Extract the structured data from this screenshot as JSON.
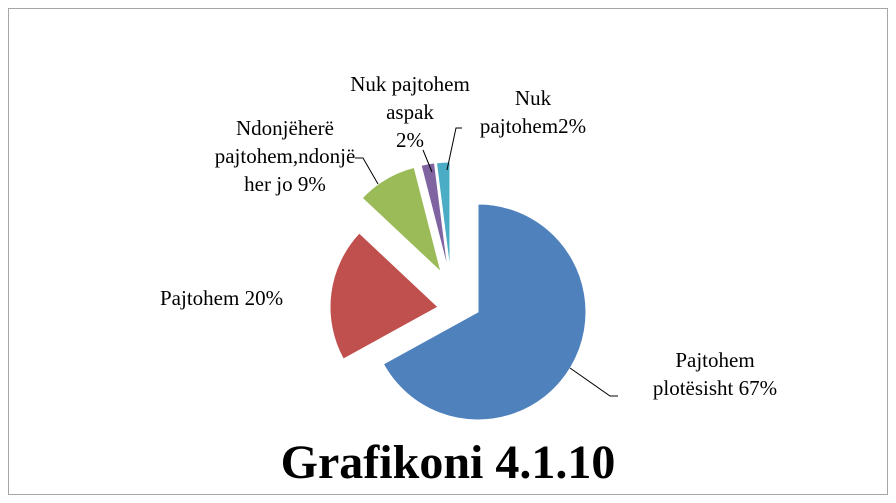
{
  "chart_data": {
    "type": "pie",
    "title": "Grafikoni 4.1.10",
    "categories": [
      "Pajtohem plotësisht",
      "Pajtohem",
      "Ndonjëherë pajtohem,ndonjëher jo",
      "Nuk pajtohem aspak",
      "Nuk pajtohem"
    ],
    "values": [
      67,
      20,
      9,
      2,
      2
    ],
    "value_labels": [
      "67%",
      "20%",
      "9%",
      "2%",
      "2%"
    ],
    "colors": [
      "#4f81bd",
      "#c0504d",
      "#9bbb59",
      "#8064a2",
      "#4bacc6"
    ]
  }
}
